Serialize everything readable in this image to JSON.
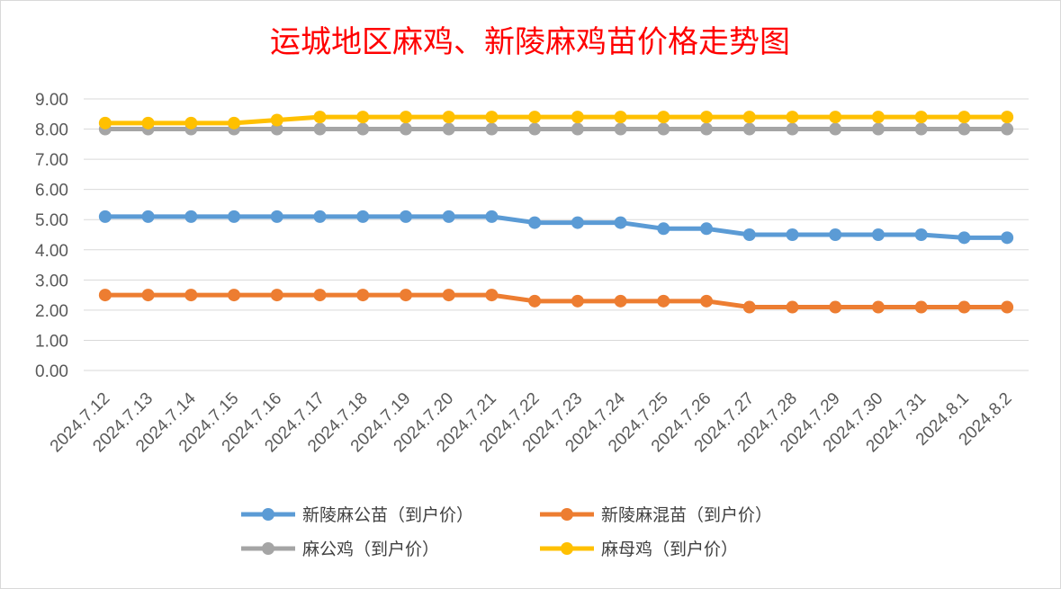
{
  "chart_data": {
    "type": "line",
    "title": "运城地区麻鸡、新陵麻鸡苗价格走势图",
    "categories": [
      "2024.7.12",
      "2024.7.13",
      "2024.7.14",
      "2024.7.15",
      "2024.7.16",
      "2024.7.17",
      "2024.7.18",
      "2024.7.19",
      "2024.7.20",
      "2024.7.21",
      "2024.7.22",
      "2024.7.23",
      "2024.7.24",
      "2024.7.25",
      "2024.7.26",
      "2024.7.27",
      "2024.7.28",
      "2024.7.29",
      "2024.7.30",
      "2024.7.31",
      "2024.8.1",
      "2024.8.2"
    ],
    "yticks": [
      "0.00",
      "1.00",
      "2.00",
      "3.00",
      "4.00",
      "5.00",
      "6.00",
      "7.00",
      "8.00",
      "9.00"
    ],
    "ylim": [
      0,
      9
    ],
    "grid": true,
    "legend_position": "bottom",
    "series": [
      {
        "name": "新陵麻公苗（到户价）",
        "color": "#5b9bd5",
        "values": [
          5.1,
          5.1,
          5.1,
          5.1,
          5.1,
          5.1,
          5.1,
          5.1,
          5.1,
          5.1,
          4.9,
          4.9,
          4.9,
          4.7,
          4.7,
          4.5,
          4.5,
          4.5,
          4.5,
          4.5,
          4.4,
          4.4
        ]
      },
      {
        "name": "新陵麻混苗（到户价）",
        "color": "#ed7d31",
        "values": [
          2.5,
          2.5,
          2.5,
          2.5,
          2.5,
          2.5,
          2.5,
          2.5,
          2.5,
          2.5,
          2.3,
          2.3,
          2.3,
          2.3,
          2.3,
          2.1,
          2.1,
          2.1,
          2.1,
          2.1,
          2.1,
          2.1
        ]
      },
      {
        "name": "麻公鸡（到户价）",
        "color": "#a5a5a5",
        "values": [
          8.0,
          8.0,
          8.0,
          8.0,
          8.0,
          8.0,
          8.0,
          8.0,
          8.0,
          8.0,
          8.0,
          8.0,
          8.0,
          8.0,
          8.0,
          8.0,
          8.0,
          8.0,
          8.0,
          8.0,
          8.0,
          8.0
        ]
      },
      {
        "name": "麻母鸡（到户价）",
        "color": "#ffc000",
        "values": [
          8.2,
          8.2,
          8.2,
          8.2,
          8.3,
          8.4,
          8.4,
          8.4,
          8.4,
          8.4,
          8.4,
          8.4,
          8.4,
          8.4,
          8.4,
          8.4,
          8.4,
          8.4,
          8.4,
          8.4,
          8.4,
          8.4
        ]
      }
    ],
    "draw_order": [
      2,
      3,
      1,
      0
    ]
  }
}
